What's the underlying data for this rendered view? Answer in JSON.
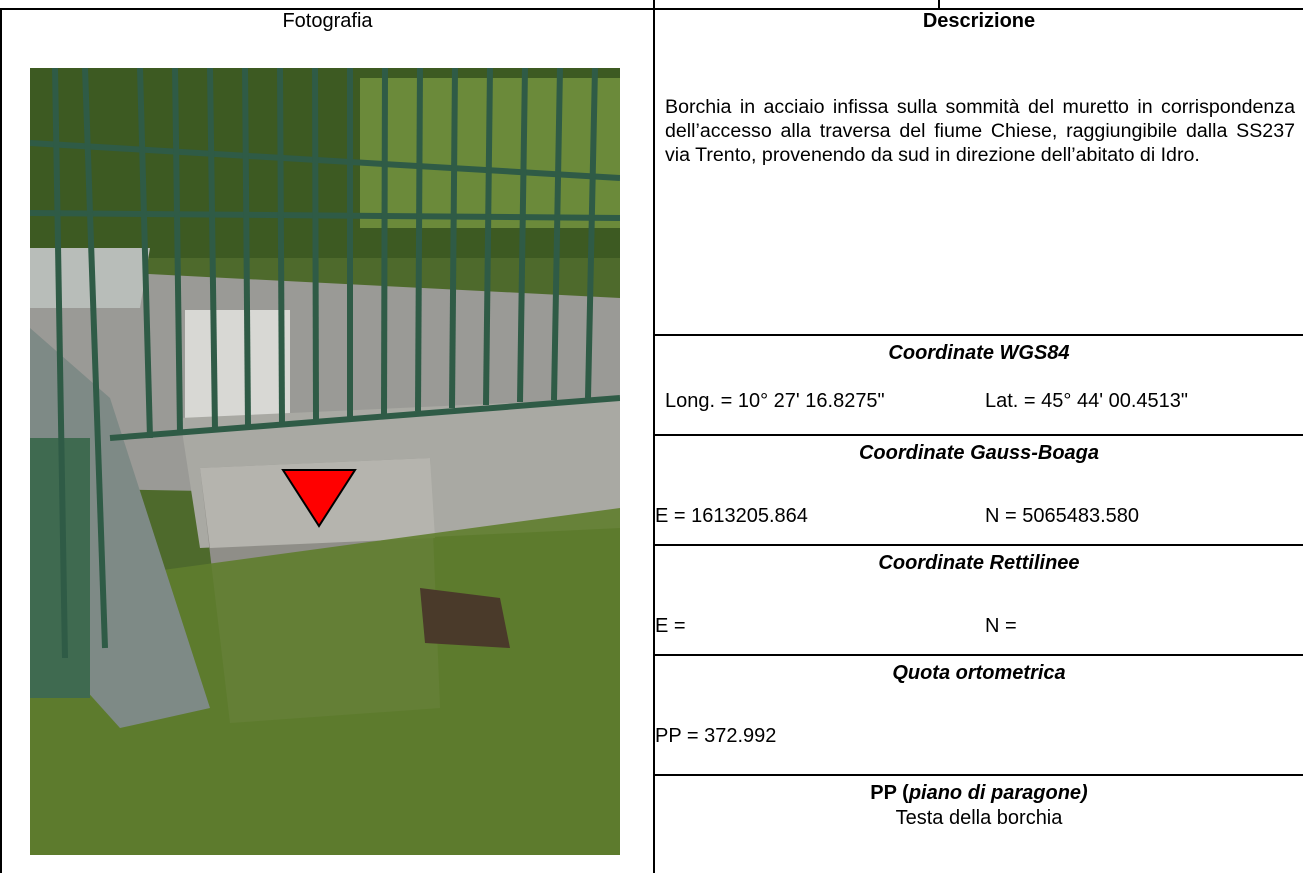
{
  "table": {
    "left": {
      "header": "Fotografia"
    },
    "right": {
      "header": "Descrizione",
      "description": "Borchia in acciaio infissa sulla sommità del muretto in corrispondenza dell’accesso alla traversa del fiume Chiese, raggiungibile dalla SS237 via Trento, provenendo da sud in direzione dell’abitato di Idro.",
      "sections": [
        {
          "title": "Coordinate WGS84",
          "values": [
            "Long. = 10° 27' 16.8275\"",
            "Lat. = 45° 44' 00.4513\""
          ]
        },
        {
          "title": "Coordinate Gauss-Boaga",
          "values": [
            "E = 1613205.864",
            "N = 5065483.580"
          ]
        },
        {
          "title": "Coordinate Rettilinee",
          "values": [
            "E =",
            "N ="
          ]
        },
        {
          "title": "Quota ortometrica",
          "values": [
            "PP = 372.992"
          ]
        }
      ],
      "reference": {
        "title": [
          "PP (",
          "piano di paragone)"
        ],
        "text": "Testa della borchia"
      }
    }
  }
}
